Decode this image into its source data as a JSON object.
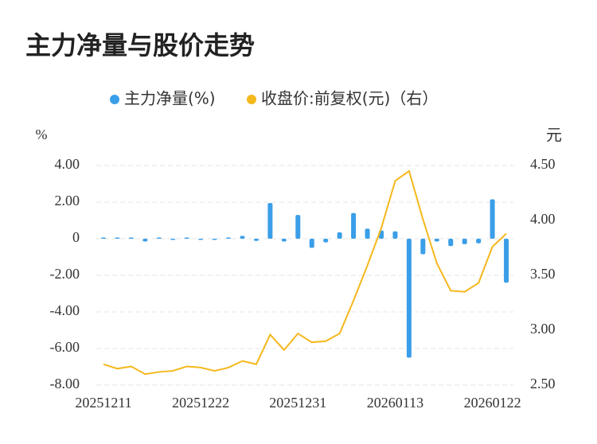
{
  "chart_data": {
    "type": "bar_line",
    "title": "主力净量与股价走势",
    "y_label": "%",
    "y2_label": "元",
    "categories": [
      "20251211",
      null,
      null,
      null,
      null,
      null,
      null,
      "20251222",
      null,
      null,
      null,
      null,
      null,
      null,
      "20251231",
      null,
      null,
      null,
      null,
      null,
      null,
      "20260113",
      null,
      null,
      null,
      null,
      null,
      null,
      "20260122",
      null
    ],
    "series": [
      {
        "name": "主力净量(%)",
        "color": "#3a9ee8",
        "type": "bar",
        "values": [
          0.02,
          0.02,
          0.05,
          -0.15,
          0.03,
          -0.03,
          0.03,
          -0.05,
          -0.03,
          0.03,
          0.15,
          -0.12,
          1.95,
          -0.15,
          1.3,
          -0.5,
          -0.2,
          0.35,
          1.4,
          0.55,
          0.45,
          0.4,
          -6.5,
          -0.85,
          -0.15,
          -0.4,
          -0.3,
          -0.25,
          2.15,
          -2.4
        ]
      },
      {
        "name": "收盘价:前复权(元)（右）",
        "color": "#f5b81c",
        "type": "line",
        "axis": "y2",
        "values": [
          2.69,
          2.65,
          2.67,
          2.6,
          2.62,
          2.63,
          2.67,
          2.66,
          2.63,
          2.66,
          2.72,
          2.69,
          2.96,
          2.82,
          2.97,
          2.89,
          2.9,
          2.97,
          3.27,
          3.59,
          3.93,
          4.36,
          4.45,
          4.01,
          3.61,
          3.36,
          3.35,
          3.43,
          3.76,
          3.88
        ]
      }
    ],
    "ylim": [
      -8,
      4
    ],
    "yticks": [
      {
        "value": 4,
        "label": "4.00"
      },
      {
        "value": 2,
        "label": "2.00"
      },
      0,
      {
        "value": -2,
        "label": "-2.00"
      },
      {
        "value": -4,
        "label": "-4.00"
      },
      {
        "value": -6,
        "label": "-6.00"
      },
      {
        "value": -8,
        "label": "-8.00"
      }
    ],
    "y2lim": [
      2.5,
      4.5
    ],
    "y2ticks": [
      {
        "value": 4.5,
        "label": "4.50"
      },
      {
        "value": 4,
        "label": "4.00"
      },
      {
        "value": 3.5,
        "label": "3.50"
      },
      {
        "value": 3,
        "label": "3.00"
      },
      {
        "value": 2.5,
        "label": "2.50"
      }
    ],
    "grid": true
  }
}
